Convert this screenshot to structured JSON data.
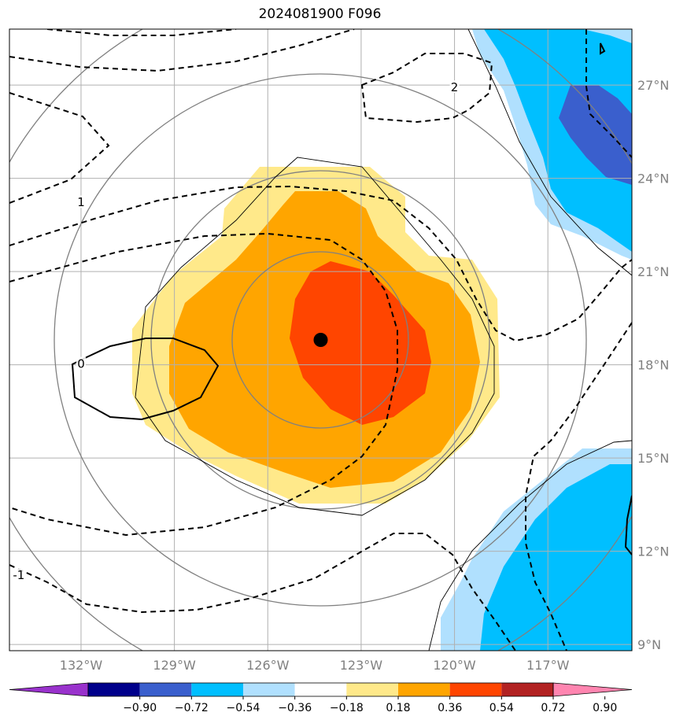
{
  "title": "2024081900 F096",
  "map": {
    "lon_labels": [
      "132°W",
      "129°W",
      "126°W",
      "123°W",
      "120°W",
      "117°W"
    ],
    "lat_labels": [
      "27°N",
      "24°N",
      "21°N",
      "18°N",
      "15°N",
      "12°N",
      "9°N"
    ],
    "lon_values": [
      -132,
      -129,
      -126,
      -123,
      -120,
      -117
    ],
    "lat_values": [
      27,
      24,
      21,
      18,
      15,
      12,
      9
    ],
    "extent": {
      "lon_min": -134.3,
      "lon_max": -114.3,
      "lat_min": 8.8,
      "lat_max": 28.8
    },
    "center_marker": {
      "lon": -124.3,
      "lat": 18.8,
      "color": "#000000"
    },
    "contour_labels": [
      {
        "text": "2",
        "lon": -120.0,
        "lat": 26.9
      },
      {
        "text": "1",
        "lon": -132.0,
        "lat": 23.2
      },
      {
        "text": "0",
        "lon": -132.0,
        "lat": 18.0
      },
      {
        "text": "-1",
        "lon": -134.0,
        "lat": 11.2
      }
    ]
  },
  "colorbar": {
    "colors": [
      "#9932cc",
      "#00008b",
      "#3a5fcd",
      "#00bfff",
      "#b0e0fe",
      "#ffffff",
      "#ffe98a",
      "#ffa500",
      "#ff4500",
      "#b22222",
      "#ff85b0"
    ],
    "tick_labels": [
      "−0.90",
      "−0.72",
      "−0.54",
      "−0.36",
      "−0.18",
      "0.18",
      "0.36",
      "0.54",
      "0.72",
      "0.90"
    ]
  }
}
